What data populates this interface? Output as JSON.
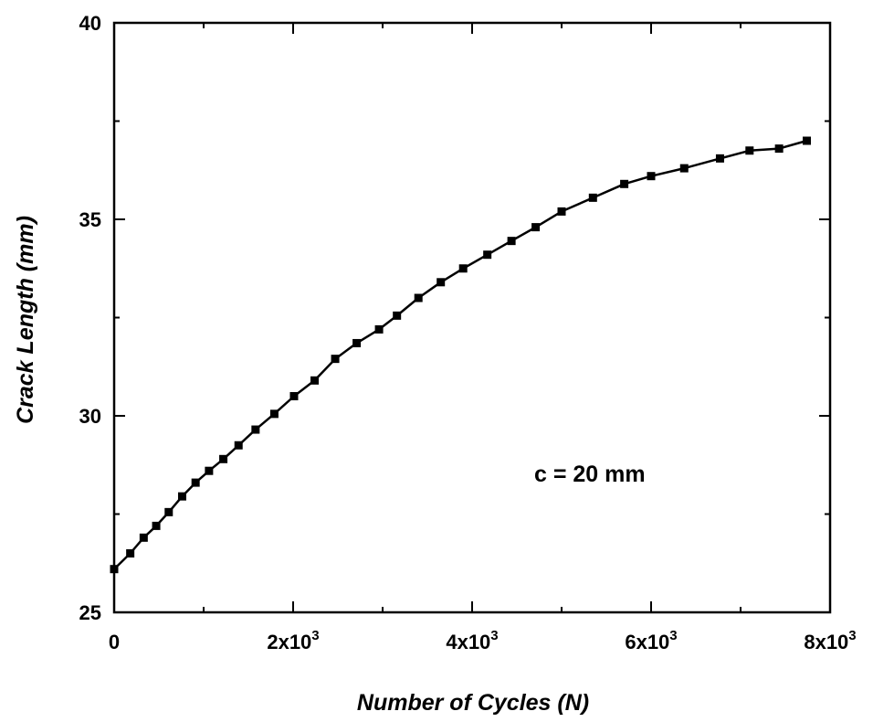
{
  "chart_data": {
    "type": "line",
    "title": "",
    "xlabel": "Number of Cycles (N)",
    "ylabel": "Crack Length (mm)",
    "xlim": [
      0,
      8000
    ],
    "ylim": [
      25,
      40
    ],
    "x_ticks": [
      {
        "value": 0,
        "base": "0",
        "exp": ""
      },
      {
        "value": 2000,
        "base": "2x10",
        "exp": "3"
      },
      {
        "value": 4000,
        "base": "4x10",
        "exp": "3"
      },
      {
        "value": 6000,
        "base": "6x10",
        "exp": "3"
      },
      {
        "value": 8000,
        "base": "8x10",
        "exp": "3"
      }
    ],
    "y_ticks": [
      {
        "value": 25,
        "label": "25"
      },
      {
        "value": 30,
        "label": "30"
      },
      {
        "value": 35,
        "label": "35"
      },
      {
        "value": 40,
        "label": "40"
      }
    ],
    "annotation": "c = 20 mm",
    "marker": "square",
    "line_color": "#000000",
    "grid": false,
    "series": [
      {
        "x": [
          0,
          180,
          330,
          470,
          610,
          760,
          910,
          1060,
          1220,
          1390,
          1580,
          1790,
          2010,
          2240,
          2470,
          2710,
          2960,
          3160,
          3400,
          3650,
          3900,
          4170,
          4440,
          4710,
          5000,
          5350,
          5700,
          6000,
          6370,
          6770,
          7100,
          7430,
          7740
        ],
        "y": [
          26.1,
          26.5,
          26.9,
          27.2,
          27.55,
          27.95,
          28.3,
          28.6,
          28.9,
          29.25,
          29.65,
          30.05,
          30.5,
          30.9,
          31.45,
          31.85,
          32.2,
          32.55,
          33.0,
          33.4,
          33.75,
          34.1,
          34.45,
          34.8,
          35.2,
          35.55,
          35.9,
          36.1,
          36.3,
          36.55,
          36.75,
          36.8,
          37.0
        ]
      }
    ]
  }
}
